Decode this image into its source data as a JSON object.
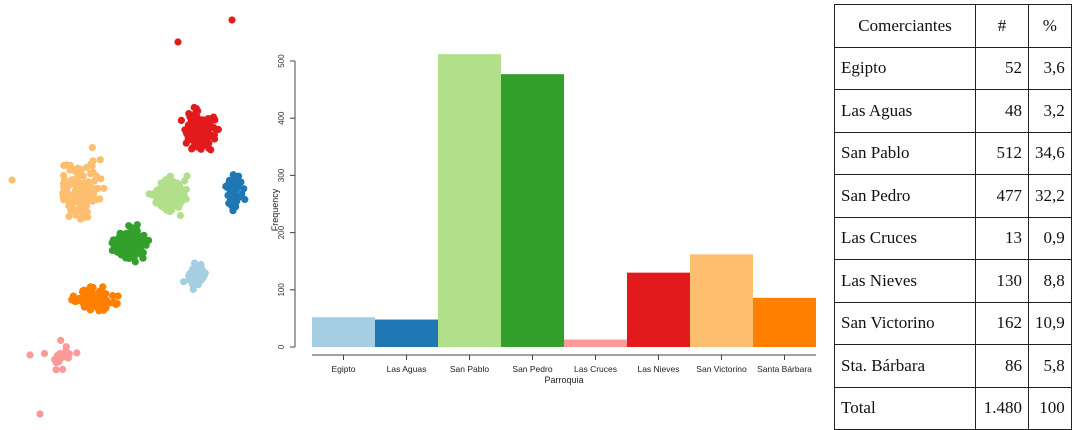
{
  "chart_data": [
    {
      "type": "scatter",
      "description_colors": {
        "Egipto": "#a6cee3",
        "Las Aguas": "#1f78b4",
        "San Pablo": "#b2df8a",
        "San Pedro": "#33a02c",
        "Las Cruces": "#fb9a99",
        "Las Nieves": "#e31a1c",
        "San Victorino": "#fdbf6f",
        "Santa Bárbara": "#ff7f00"
      },
      "title": "",
      "xlabel": "",
      "ylabel": "",
      "axes": false
    },
    {
      "type": "bar",
      "categories": [
        "Egipto",
        "Las Aguas",
        "San Pablo",
        "San Pedro",
        "Las Cruces",
        "Las Nieves",
        "San Victorino",
        "Santa Bárbara"
      ],
      "values": [
        52,
        48,
        512,
        477,
        13,
        130,
        162,
        86
      ],
      "colors": [
        "#a6cee3",
        "#1f78b4",
        "#b2df8a",
        "#33a02c",
        "#fb9a99",
        "#e31a1c",
        "#fdbf6f",
        "#ff7f00"
      ],
      "xlabel": "Parroquia",
      "ylabel": "Frequency",
      "yticks": [
        0,
        100,
        200,
        300,
        400,
        500
      ],
      "ylim": [
        0,
        520
      ]
    },
    {
      "type": "table",
      "headers": [
        "Comerciantes",
        "#",
        "%"
      ],
      "rows": [
        [
          "Egipto",
          "52",
          "3,6"
        ],
        [
          "Las Aguas",
          "48",
          "3,2"
        ],
        [
          "San Pablo",
          "512",
          "34,6"
        ],
        [
          "San Pedro",
          "477",
          "32,2"
        ],
        [
          "Las Cruces",
          "13",
          "0,9"
        ],
        [
          "Las Nieves",
          "130",
          "8,8"
        ],
        [
          "San Victorino",
          "162",
          "10,9"
        ],
        [
          "Sta. Bárbara",
          "86",
          "5,8"
        ],
        [
          "Total",
          "1.480",
          "100"
        ]
      ]
    }
  ]
}
